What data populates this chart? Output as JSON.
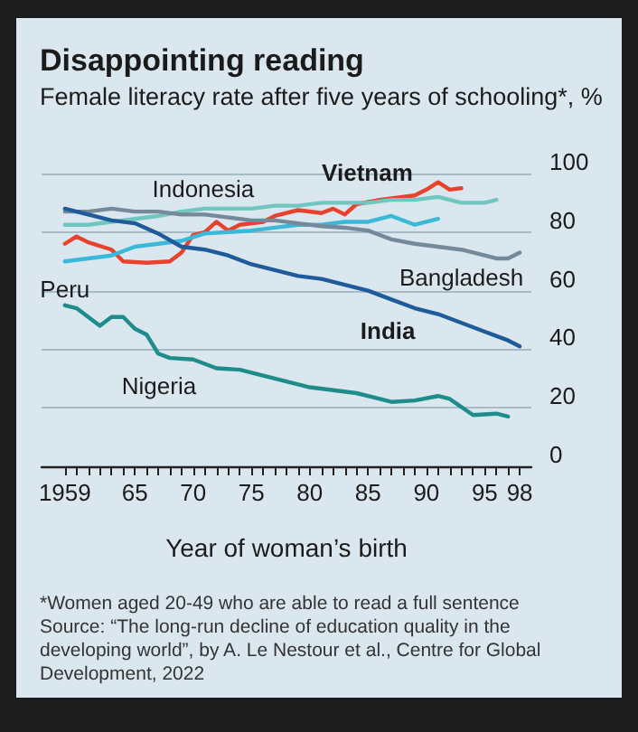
{
  "chart_data": {
    "type": "line",
    "title": "Disappointing reading",
    "subtitle": "Female literacy rate after five years of schooling*, %",
    "xlabel": "Year of woman’s birth",
    "annotations": [
      "*Women aged 20-49 who are able to read a full sentence",
      "Source: “The long-run decline of education quality in the developing world”, by A. Le Nestour et al., Centre for Global Development, 2022"
    ],
    "series": [
      {
        "name": "Vietnam",
        "color": "#e8412e",
        "x": [
          1959,
          1960,
          1961,
          1963,
          1964,
          1966,
          1968,
          1969,
          1970,
          1971,
          1972,
          1973,
          1974,
          1976,
          1977,
          1979,
          1981,
          1982,
          1983,
          1984,
          1986,
          1989,
          1990,
          1991,
          1992,
          1993
        ],
        "values": [
          76,
          78.5,
          76.5,
          74,
          70,
          69.5,
          70,
          73,
          79,
          80,
          83.5,
          80.5,
          82.5,
          83.5,
          85.5,
          87.5,
          86.5,
          88,
          86,
          89.5,
          91,
          92.5,
          94.5,
          97,
          94.5,
          95
        ]
      },
      {
        "name": "Indonesia",
        "color": "#6fc7c0",
        "x": [
          1959,
          1961,
          1963,
          1965,
          1967,
          1969,
          1971,
          1973,
          1975,
          1977,
          1979,
          1981,
          1983,
          1985,
          1987,
          1989,
          1991,
          1993,
          1995,
          1996
        ],
        "values": [
          82.5,
          82.5,
          83.5,
          84.5,
          85.5,
          87,
          88,
          88,
          88,
          89,
          89,
          90,
          90,
          90,
          91,
          91,
          92,
          90,
          90,
          91
        ]
      },
      {
        "name": "Peru",
        "color": "#3bb8d8",
        "x": [
          1959,
          1961,
          1963,
          1965,
          1967,
          1969,
          1971,
          1973,
          1975,
          1977,
          1979,
          1981,
          1983,
          1985,
          1987,
          1989,
          1991
        ],
        "values": [
          70,
          71,
          72,
          75,
          76,
          77,
          79.5,
          80,
          80.5,
          81.5,
          82.5,
          82.5,
          83.5,
          83.5,
          85.5,
          82.5,
          84.5
        ]
      },
      {
        "name": "Bangladesh",
        "color": "#76899b",
        "x": [
          1959,
          1961,
          1963,
          1965,
          1967,
          1969,
          1971,
          1973,
          1975,
          1977,
          1979,
          1981,
          1983,
          1985,
          1987,
          1989,
          1991,
          1993,
          1995,
          1996,
          1997,
          1998
        ],
        "values": [
          87,
          87,
          88,
          87,
          87,
          86,
          86,
          85,
          84,
          84,
          83,
          82,
          81.5,
          80.5,
          77.5,
          76,
          75,
          74,
          72,
          71,
          71,
          73
        ]
      },
      {
        "name": "India",
        "color": "#1f5b9b",
        "x": [
          1959,
          1961,
          1963,
          1965,
          1967,
          1969,
          1971,
          1973,
          1975,
          1977,
          1979,
          1981,
          1983,
          1985,
          1987,
          1989,
          1991,
          1993,
          1995,
          1997,
          1998
        ],
        "values": [
          88,
          86,
          84,
          83,
          79.5,
          75,
          74,
          72,
          69,
          67,
          65,
          64,
          62,
          60,
          57,
          54,
          52,
          49,
          46,
          43,
          41
        ]
      },
      {
        "name": "Nigeria",
        "color": "#1e8c8a",
        "x": [
          1959,
          1960,
          1962,
          1963,
          1964,
          1965,
          1966,
          1967,
          1968,
          1970,
          1972,
          1974,
          1976,
          1978,
          1980,
          1982,
          1984,
          1986,
          1987,
          1989,
          1991,
          1992,
          1994,
          1996,
          1997
        ],
        "values": [
          55,
          54,
          48,
          51,
          51,
          47,
          45,
          38.5,
          37,
          36.5,
          33.5,
          33,
          31,
          29,
          27,
          26,
          25,
          23,
          22,
          22.5,
          24,
          23,
          17.5,
          18,
          17
        ]
      }
    ],
    "xlim": [
      1957,
      1999
    ],
    "xticks": [
      {
        "value": 1959,
        "label": "1959"
      },
      {
        "value": 1960,
        "label": null
      },
      {
        "value": 1961,
        "label": null
      },
      {
        "value": 1962,
        "label": null
      },
      {
        "value": 1963,
        "label": null
      },
      {
        "value": 1964,
        "label": null
      },
      {
        "value": 1965,
        "label": "65"
      },
      {
        "value": 1966,
        "label": null
      },
      {
        "value": 1967,
        "label": null
      },
      {
        "value": 1968,
        "label": null
      },
      {
        "value": 1969,
        "label": null
      },
      {
        "value": 1970,
        "label": "70"
      },
      {
        "value": 1971,
        "label": null
      },
      {
        "value": 1972,
        "label": null
      },
      {
        "value": 1973,
        "label": null
      },
      {
        "value": 1974,
        "label": null
      },
      {
        "value": 1975,
        "label": "75"
      },
      {
        "value": 1976,
        "label": null
      },
      {
        "value": 1977,
        "label": null
      },
      {
        "value": 1978,
        "label": null
      },
      {
        "value": 1979,
        "label": null
      },
      {
        "value": 1980,
        "label": "80"
      },
      {
        "value": 1981,
        "label": null
      },
      {
        "value": 1982,
        "label": null
      },
      {
        "value": 1983,
        "label": null
      },
      {
        "value": 1984,
        "label": null
      },
      {
        "value": 1985,
        "label": "85"
      },
      {
        "value": 1986,
        "label": null
      },
      {
        "value": 1987,
        "label": null
      },
      {
        "value": 1988,
        "label": null
      },
      {
        "value": 1989,
        "label": null
      },
      {
        "value": 1990,
        "label": "90"
      },
      {
        "value": 1991,
        "label": null
      },
      {
        "value": 1992,
        "label": null
      },
      {
        "value": 1993,
        "label": null
      },
      {
        "value": 1994,
        "label": null
      },
      {
        "value": 1995,
        "label": "95"
      },
      {
        "value": 1996,
        "label": null
      },
      {
        "value": 1997,
        "label": null
      },
      {
        "value": 1998,
        "label": "98"
      }
    ],
    "ylim": [
      0,
      100
    ],
    "yticks": [
      0,
      20,
      40,
      60,
      80,
      100
    ],
    "grid": "y",
    "legend": false,
    "marker": "none",
    "line_style": "solid"
  }
}
